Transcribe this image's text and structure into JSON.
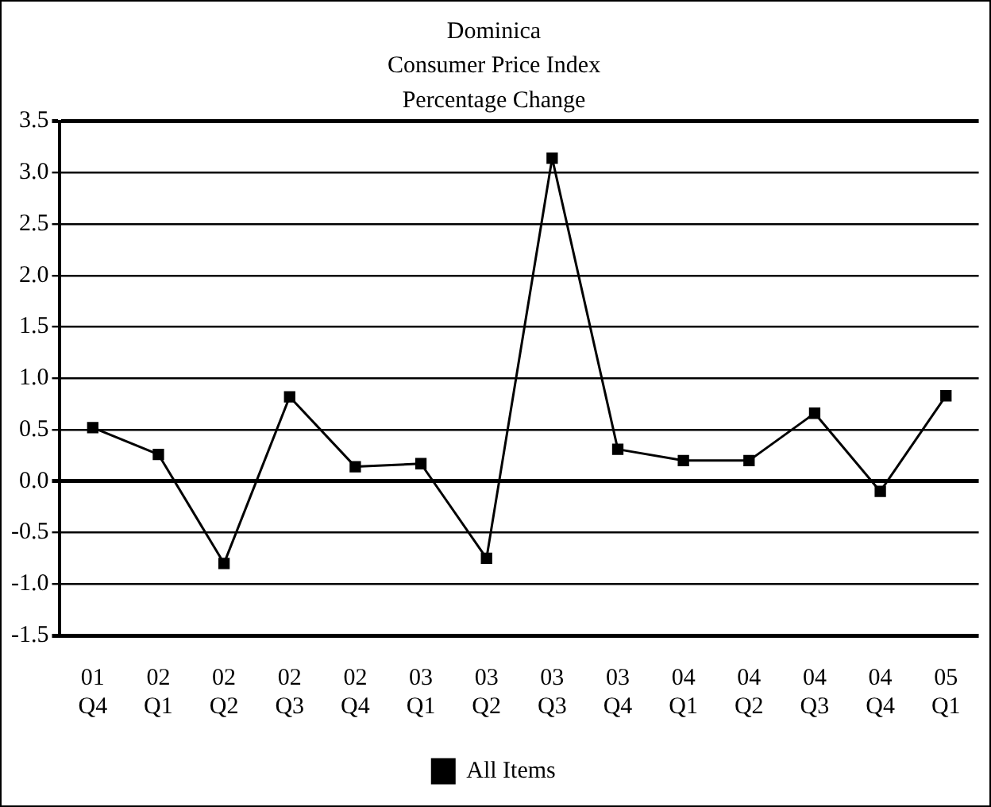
{
  "chart_data": {
    "type": "line",
    "title": "Dominica\nConsumer Price Index\nPercentage Change",
    "categories": [
      "01\nQ4",
      "02\nQ1",
      "02\nQ2",
      "02\nQ3",
      "02\nQ4",
      "03\nQ1",
      "03\nQ2",
      "03\nQ3",
      "03\nQ4",
      "04\nQ1",
      "04\nQ2",
      "04\nQ3",
      "04\nQ4",
      "05\nQ1"
    ],
    "series": [
      {
        "name": "All Items",
        "color": "#000000",
        "values": [
          0.52,
          0.26,
          -0.8,
          0.82,
          0.14,
          0.17,
          -0.75,
          3.14,
          0.31,
          0.2,
          0.2,
          0.66,
          -0.1,
          0.83
        ]
      }
    ],
    "ylim": [
      -1.5,
      3.5
    ],
    "yticks": [
      {
        "value": -1.5,
        "label": "-1.5"
      },
      {
        "value": -1,
        "label": "-1.0"
      },
      {
        "value": -0.5,
        "label": "-0.5"
      },
      {
        "value": 0,
        "label": "0.0"
      },
      {
        "value": 0.5,
        "label": "0.5"
      },
      {
        "value": 1,
        "label": "1.0"
      },
      {
        "value": 1.5,
        "label": "1.5"
      },
      {
        "value": 2,
        "label": "2.0"
      },
      {
        "value": 2.5,
        "label": "2.5"
      },
      {
        "value": 3,
        "label": "3.0"
      },
      {
        "value": 3.5,
        "label": "3.5"
      }
    ],
    "grid": "y",
    "legend": "bottom",
    "marker": "square",
    "line_style": "solid"
  }
}
